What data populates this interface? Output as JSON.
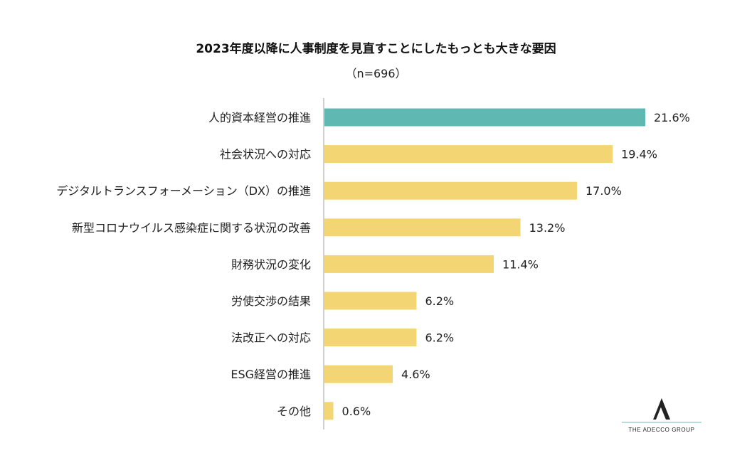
{
  "chart_data": {
    "type": "bar",
    "orientation": "horizontal",
    "title": "2023年度以降に人事制度を見直すことにしたもっとも大きな要因",
    "subtitle": "（n=696）",
    "categories": [
      "人的資本経営の推進",
      "社会状況への対応",
      "デジタルトランスフォーメーション（DX）の推進",
      "新型コロナウイルス感染症に関する状況の改善",
      "財務状況の変化",
      "労使交渉の結果",
      "法改正への対応",
      "ESG経営の推進",
      "その他"
    ],
    "values": [
      21.6,
      19.4,
      17.0,
      13.2,
      11.4,
      6.2,
      6.2,
      4.6,
      0.6
    ],
    "value_labels": [
      "21.6%",
      "19.4%",
      "17.0%",
      "13.2%",
      "11.4%",
      "6.2%",
      "6.2%",
      "4.6%",
      "0.6%"
    ],
    "unit": "%",
    "xlim": [
      0,
      21.6
    ],
    "highlight_index": 0,
    "colors": {
      "highlight": "#5FB8B1",
      "default": "#F3D573",
      "axis": "#BFBFBF"
    },
    "grid": false,
    "legend": "none"
  },
  "logo": {
    "mark": "A",
    "text": "THE ADECCO GROUP",
    "line_color": "#9FD3CF"
  }
}
